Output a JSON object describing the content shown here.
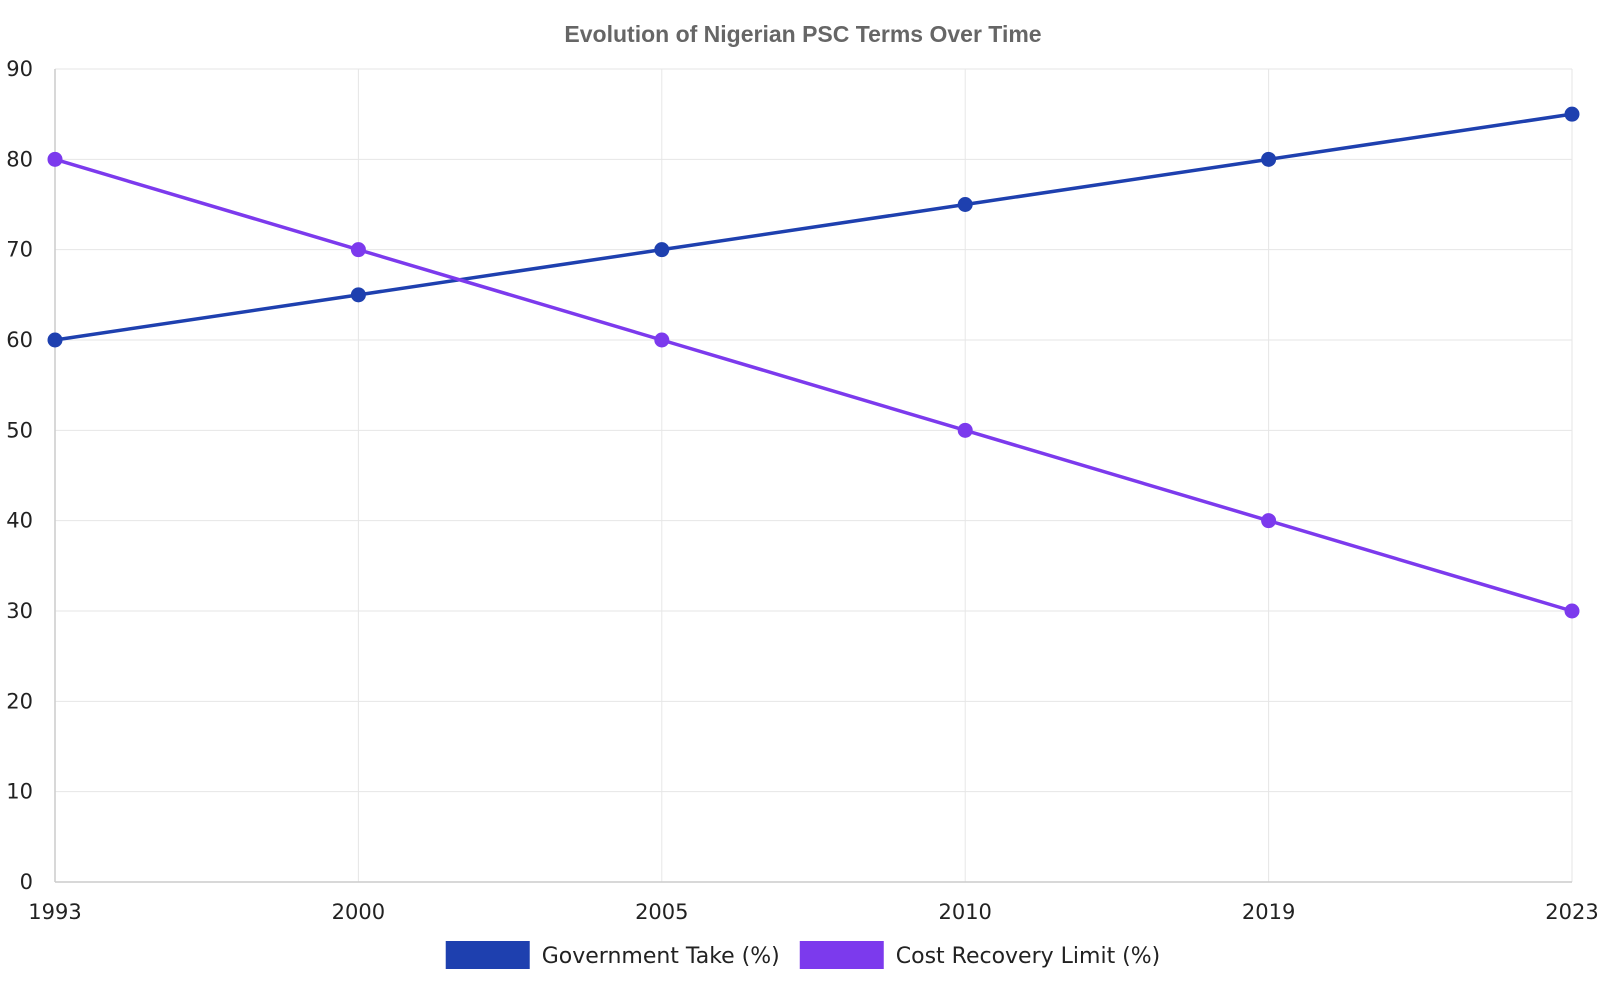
{
  "chart_data": {
    "type": "line",
    "title": "Evolution of Nigerian PSC Terms Over Time",
    "xlabel": "",
    "ylabel": "",
    "categories": [
      "1993",
      "2000",
      "2005",
      "2010",
      "2019",
      "2023"
    ],
    "ylim": [
      0,
      90
    ],
    "yticks": [
      0,
      10,
      20,
      30,
      40,
      50,
      60,
      70,
      80,
      90
    ],
    "grid": true,
    "legend_position": "bottom",
    "series": [
      {
        "name": "Government Take (%)",
        "color": "#1e40af",
        "values": [
          60,
          65,
          70,
          75,
          80,
          85
        ]
      },
      {
        "name": "Cost Recovery Limit (%)",
        "color": "#7c3aed",
        "values": [
          80,
          70,
          60,
          50,
          40,
          30
        ]
      }
    ]
  }
}
